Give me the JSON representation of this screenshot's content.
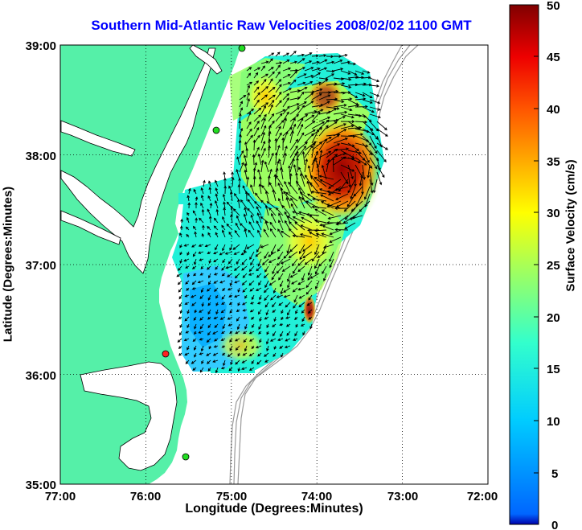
{
  "map": {
    "title": "Southern Mid-Atlantic Raw Velocities 2008/02/02 1100 GMT",
    "x_axis_label": "Longitude (Degrees:Minutes)",
    "y_axis_label": "Latitude (Degrees:Minutes)",
    "lon_range": [
      -77,
      -72
    ],
    "lat_range": [
      35,
      39
    ],
    "x_ticks": [
      "77:00",
      "76:00",
      "75:00",
      "74:00",
      "73:00",
      "72:00"
    ],
    "y_ticks": [
      "39:00",
      "38:00",
      "37:00",
      "36:00",
      "35:00"
    ],
    "land_color": "#55f0a8",
    "coast_color": "#000000",
    "bathymetry_color": "#999999",
    "grid": true
  },
  "colorbar": {
    "label": "Surface Velocity (cm/s)",
    "min": 0,
    "max": 50,
    "ticks": [
      "50",
      "45",
      "40",
      "35",
      "30",
      "25",
      "20",
      "15",
      "10",
      "5",
      "0"
    ],
    "colormap": "jet"
  },
  "stations": [
    {
      "color": "#22dd22"
    },
    {
      "color": "#22dd22"
    },
    {
      "color": "#22dd22"
    },
    {
      "color": "#ff2222"
    }
  ]
}
